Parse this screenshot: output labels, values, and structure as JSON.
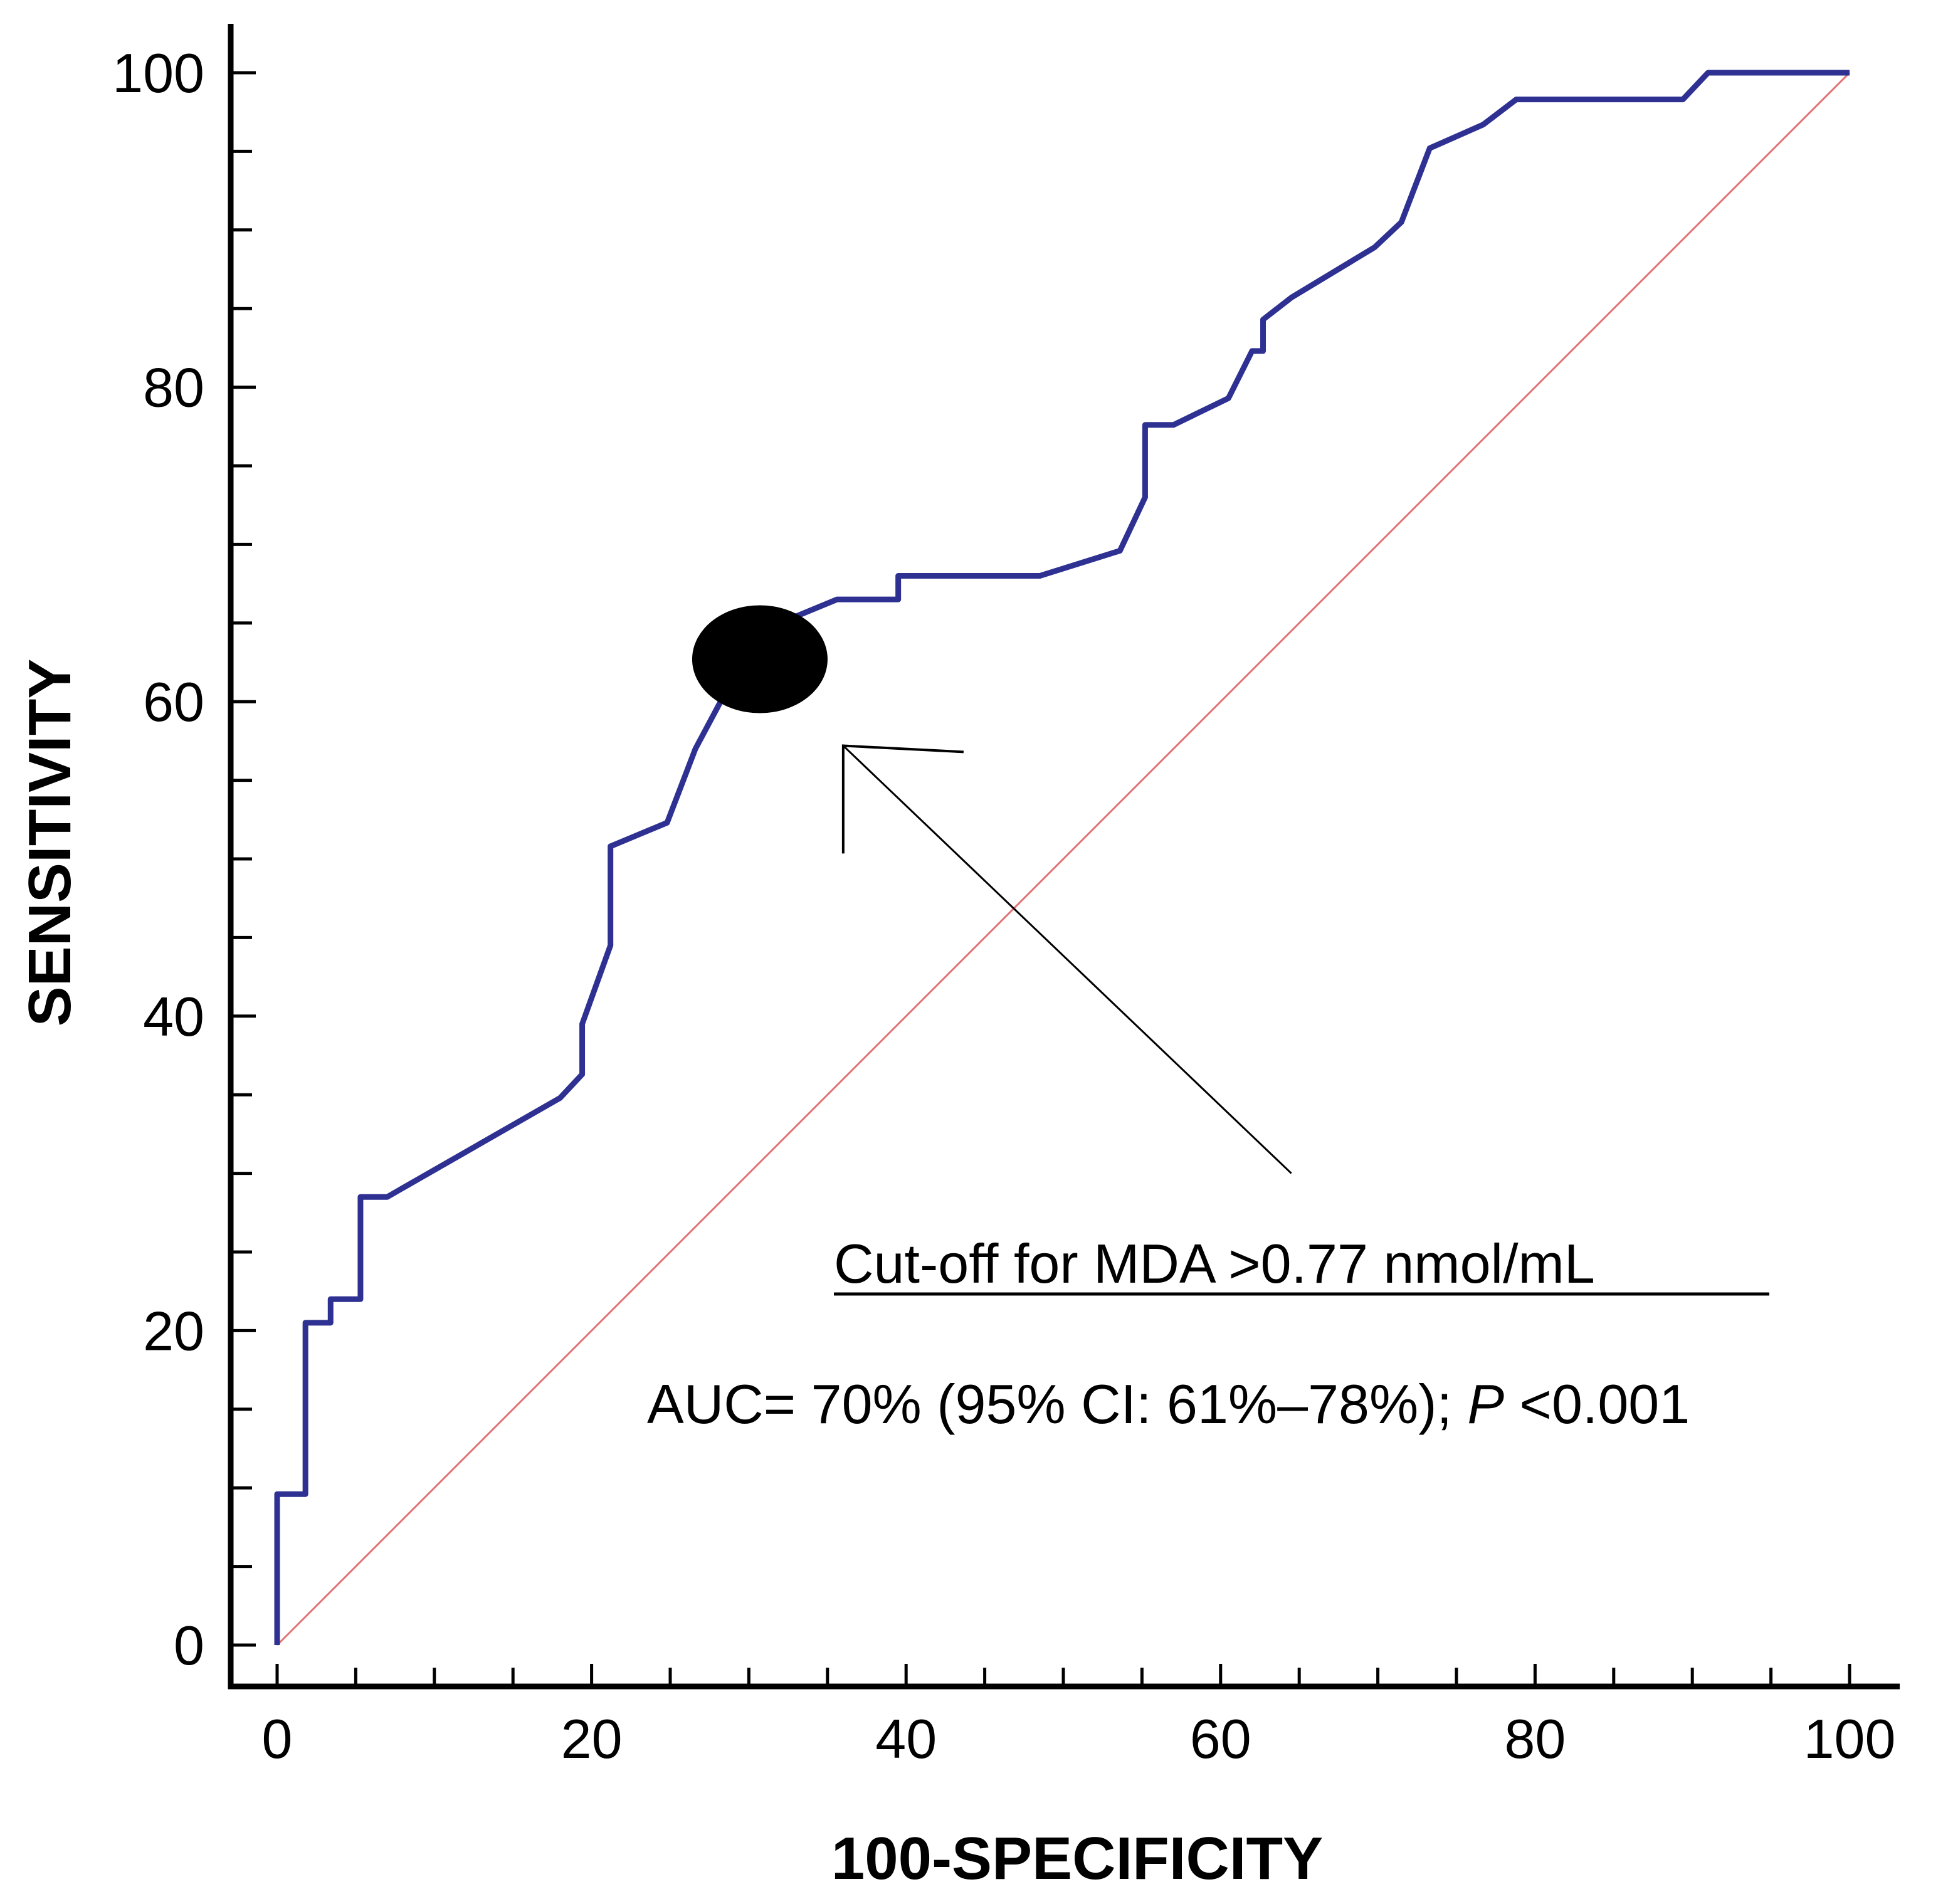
{
  "chart_data": {
    "type": "line",
    "title": "",
    "xlabel": "100-SPECIFICITY",
    "ylabel": "SENSITIVITY",
    "xlim": [
      0,
      100
    ],
    "ylim": [
      0,
      100
    ],
    "x_ticks": [
      0,
      20,
      40,
      60,
      80,
      100
    ],
    "y_ticks": [
      0,
      20,
      40,
      60,
      80,
      100
    ],
    "x_tick_labels": [
      "0",
      "20",
      "40",
      "60",
      "80",
      "100"
    ],
    "y_tick_labels": [
      "0",
      "20",
      "40",
      "60",
      "80",
      "100"
    ],
    "minor_tick_step": 5,
    "grid": false,
    "series": [
      {
        "name": "ROC curve",
        "color": "#2e3192",
        "x": [
          0,
          0,
          1.8,
          1.8,
          3.4,
          3.4,
          5.3,
          5.3,
          7.0,
          18.0,
          19.4,
          19.4,
          21.2,
          21.2,
          24.8,
          26.6,
          28.2,
          31.0,
          35.6,
          39.5,
          39.5,
          48.5,
          53.6,
          55.2,
          55.2,
          57.0,
          60.5,
          62.0,
          62.7,
          62.7,
          64.5,
          69.8,
          71.5,
          73.3,
          76.7,
          78.8,
          89.4,
          91.0,
          100
        ],
        "y": [
          0,
          9.6,
          9.6,
          20.5,
          20.5,
          22.0,
          22.0,
          28.5,
          28.5,
          34.8,
          36.3,
          39.5,
          44.5,
          50.8,
          52.3,
          57.0,
          60.0,
          64.6,
          66.5,
          66.5,
          68.0,
          68.0,
          69.6,
          73.0,
          77.6,
          77.6,
          79.3,
          82.3,
          82.3,
          84.3,
          85.7,
          88.9,
          90.5,
          95.2,
          96.7,
          98.3,
          98.3,
          100,
          100
        ]
      },
      {
        "name": "Reference line",
        "color": "#e57373",
        "x": [
          0,
          100
        ],
        "y": [
          0,
          100
        ]
      }
    ],
    "cutoff_point": {
      "x": 30.7,
      "y": 62.7,
      "color": "#000000"
    },
    "arrow": {
      "from": [
        64.5,
        30.0
      ],
      "to": [
        36.0,
        57.2
      ]
    },
    "annotations": [
      {
        "text": "Cut-off for MDA >0.77 nmol/mL",
        "underline": true
      },
      {
        "text_main": "AUC= 70% (95% CI: 61%–78%); ",
        "text_italic": "P",
        "text_tail": " <0.001"
      }
    ]
  }
}
